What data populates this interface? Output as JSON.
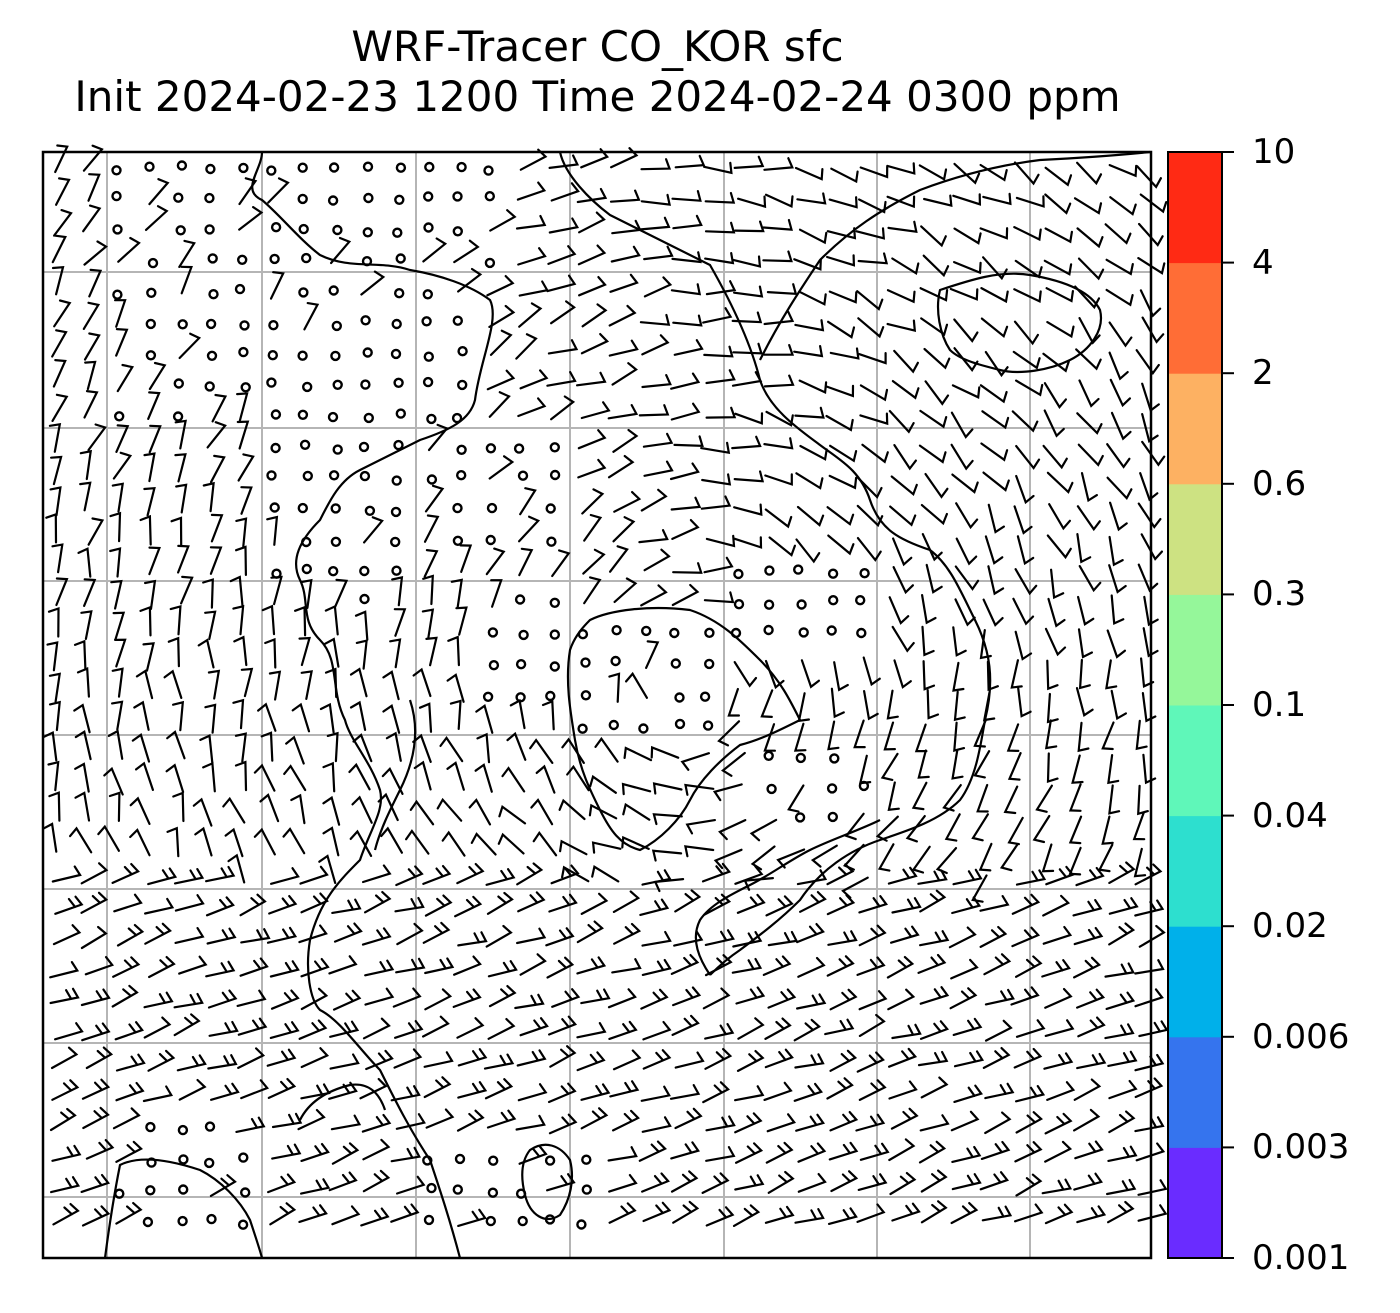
{
  "title": {
    "line1": "WRF-Tracer CO_KOR sfc",
    "line2": "Init 2024-02-23 1200 Time 2024-02-24 0300 ppm"
  },
  "colorbar": {
    "levels": [
      "0.001",
      "0.003",
      "0.006",
      "0.02",
      "0.04",
      "0.1",
      "0.3",
      "0.6",
      "2",
      "4",
      "10"
    ],
    "colors": [
      "#6a2cff",
      "#3574ee",
      "#00b0ea",
      "#2ddfcf",
      "#5ff7b9",
      "#95f79a",
      "#cde282",
      "#fdb162",
      "#ff6d36",
      "#ff2a14"
    ]
  },
  "map": {
    "gridlines": "on",
    "features": [
      "coastlines",
      "wind-barbs",
      "calm-wind-circles"
    ]
  }
}
